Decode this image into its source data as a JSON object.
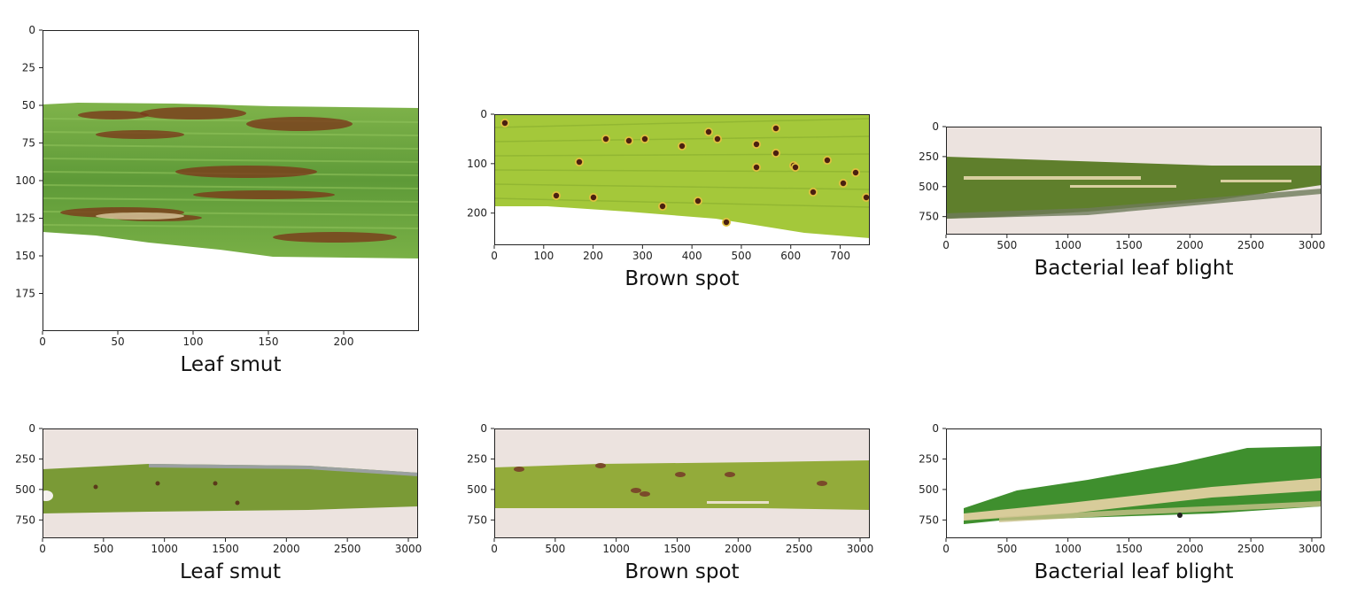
{
  "panels": [
    {
      "title": "Leaf smut",
      "image": "leaf-smut-closeup",
      "xticks": [
        0,
        50,
        100,
        150,
        200
      ],
      "yticks": [
        0,
        25,
        50,
        75,
        100,
        125,
        150,
        175
      ],
      "xlim": [
        0,
        250
      ],
      "ylim": [
        0,
        200
      ]
    },
    {
      "title": "Brown spot",
      "image": "brown-spot-closeup",
      "xticks": [
        0,
        100,
        200,
        300,
        400,
        500,
        600,
        700
      ],
      "yticks": [
        0,
        100,
        200
      ],
      "xlim": [
        0,
        760
      ],
      "ylim": [
        0,
        265
      ]
    },
    {
      "title": "Bacterial leaf blight",
      "image": "bacterial-leaf-blight-photo",
      "xticks": [
        0,
        500,
        1000,
        1500,
        2000,
        2500,
        3000
      ],
      "yticks": [
        0,
        250,
        500,
        750
      ],
      "xlim": [
        0,
        3080
      ],
      "ylim": [
        0,
        900
      ]
    },
    {
      "title": "Leaf smut",
      "image": "leaf-smut-photo",
      "xticks": [
        0,
        500,
        1000,
        1500,
        2000,
        2500,
        3000
      ],
      "yticks": [
        0,
        250,
        500,
        750
      ],
      "xlim": [
        0,
        3080
      ],
      "ylim": [
        0,
        900
      ]
    },
    {
      "title": "Brown spot",
      "image": "brown-spot-photo",
      "xticks": [
        0,
        500,
        1000,
        1500,
        2000,
        2500,
        3000
      ],
      "yticks": [
        0,
        250,
        500,
        750
      ],
      "xlim": [
        0,
        3080
      ],
      "ylim": [
        0,
        900
      ]
    },
    {
      "title": "Bacterial leaf blight",
      "image": "bacterial-leaf-blight-closeup",
      "xticks": [
        0,
        500,
        1000,
        1500,
        2000,
        2500,
        3000
      ],
      "yticks": [
        0,
        250,
        500,
        750
      ],
      "xlim": [
        0,
        3080
      ],
      "ylim": [
        0,
        900
      ]
    }
  ]
}
